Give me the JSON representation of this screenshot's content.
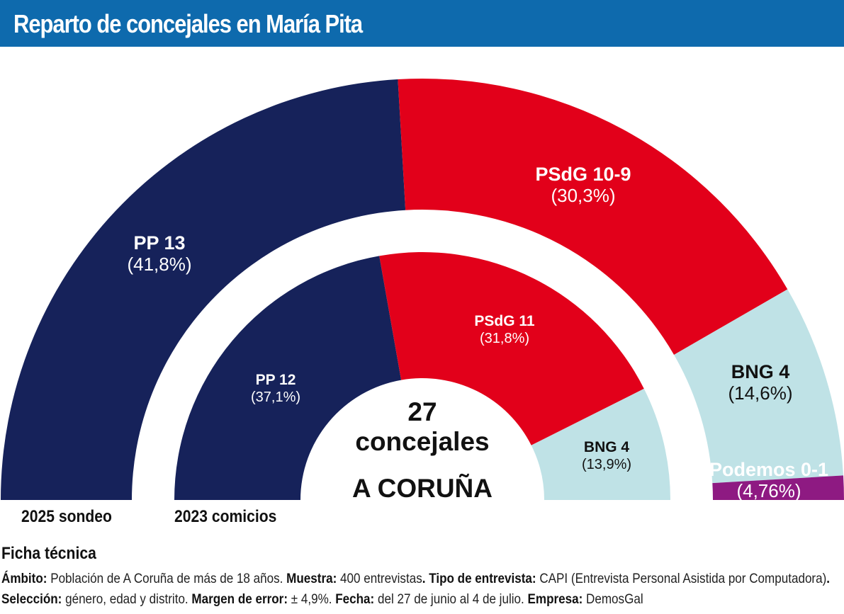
{
  "header": {
    "title": "Reparto de concejales en María Pita",
    "background": "#0e6aad"
  },
  "colors": {
    "PP": "#16225a",
    "PSdG": "#e2001a",
    "BNG": "#bfe2e6",
    "Podemos": "#8e1a82"
  },
  "chart_data": [
    {
      "type": "pie",
      "title": "2025 sondeo",
      "total_seats": 27,
      "series": [
        {
          "name": "PP",
          "label": "PP 13",
          "seats": 13,
          "pct_label": "(41,8%)",
          "pct": 41.8,
          "color": "#16225a",
          "text_color": "#ffffff"
        },
        {
          "name": "PSdG",
          "label": "PSdG 10-9",
          "seats": 9.5,
          "pct_label": "(30,3%)",
          "pct": 30.3,
          "color": "#e2001a",
          "text_color": "#ffffff"
        },
        {
          "name": "BNG",
          "label": "BNG 4",
          "seats": 4,
          "pct_label": "(14,6%)",
          "pct": 14.6,
          "color": "#bfe2e6",
          "text_color": "#111111"
        },
        {
          "name": "Podemos",
          "label": "Podemos 0-1",
          "seats": 0.5,
          "pct_label": "(4,76%)",
          "pct": 4.76,
          "color": "#8e1a82",
          "text_color": "#ffffff"
        }
      ]
    },
    {
      "type": "pie",
      "title": "2023 comicios",
      "total_seats": 27,
      "series": [
        {
          "name": "PP",
          "label": "PP 12",
          "seats": 12,
          "pct_label": "(37,1%)",
          "pct": 37.1,
          "color": "#16225a",
          "text_color": "#ffffff"
        },
        {
          "name": "PSdG",
          "label": "PSdG 11",
          "seats": 11,
          "pct_label": "(31,8%)",
          "pct": 31.8,
          "color": "#e2001a",
          "text_color": "#ffffff"
        },
        {
          "name": "BNG",
          "label": "BNG 4",
          "seats": 4,
          "pct_label": "(13,9%)",
          "pct": 13.9,
          "color": "#bfe2e6",
          "text_color": "#111111"
        }
      ]
    }
  ],
  "center": {
    "number": "27",
    "unit": "concejales",
    "city": "A CORUÑA"
  },
  "labels": {
    "outer": "2025 sondeo",
    "inner": "2023 comicios"
  },
  "ficha": {
    "title": "Ficha técnica",
    "ambito_label": "Ámbito:",
    "ambito": " Población de A Coruña de más de 18 años. ",
    "muestra_label": "Muestra:",
    "muestra": " 400 entrevistas",
    "tipo_label": ". Tipo de entrevista:",
    "tipo": " CAPI (Entrevista Personal Asistida por Computadora)",
    "seleccion_label": ". Selección:",
    "seleccion": " género, edad y distrito. ",
    "margen_label": "Margen de error:",
    "margen": " ± 4,9%. ",
    "fecha_label": "Fecha:",
    "fecha": " del 27 de junio al 4 de julio. ",
    "empresa_label": "Empresa:",
    "empresa": " DemosGal"
  }
}
